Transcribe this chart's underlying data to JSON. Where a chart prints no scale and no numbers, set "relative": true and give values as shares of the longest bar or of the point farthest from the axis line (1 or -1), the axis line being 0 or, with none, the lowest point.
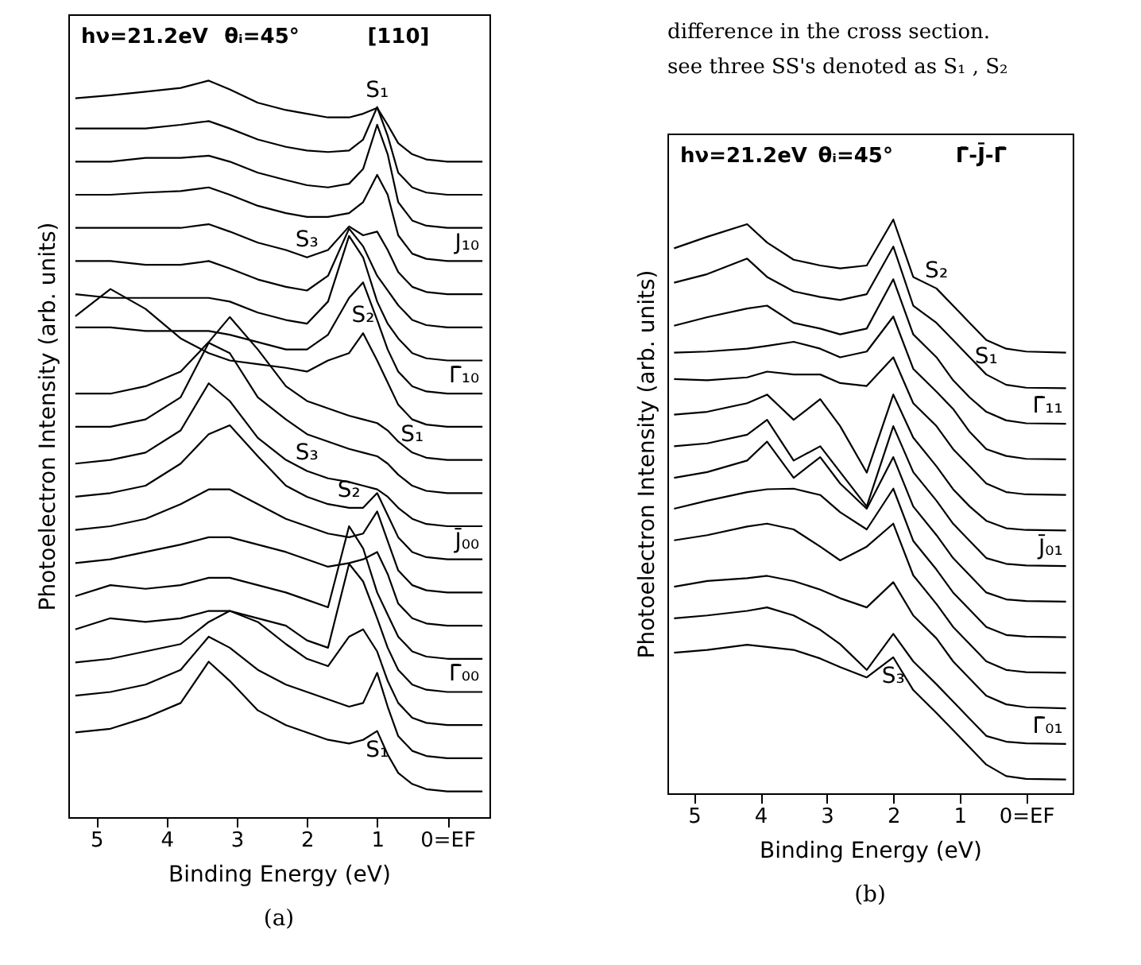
{
  "chart_data": [
    {
      "type": "line",
      "title": "(a)",
      "xlabel": "Binding Energy (eV)",
      "ylabel": "Photoelectron Intensity (arb. units)",
      "relative": true,
      "grid": false,
      "legend": false,
      "xlim": [
        5.4,
        -0.6
      ],
      "xticks": [
        5,
        4,
        3,
        2,
        1,
        {
          "value": 0,
          "label": "0=EF"
        }
      ],
      "x": [
        5.3,
        4.8,
        4.3,
        3.8,
        3.4,
        3.1,
        2.7,
        2.3,
        2.0,
        1.7,
        1.4,
        1.2,
        1.0,
        0.85,
        0.7,
        0.5,
        0.3,
        0.0,
        -0.5
      ],
      "series": [
        {
          "color": "#000000",
          "values": [
            0.976,
            0.98,
            0.985,
            0.99,
            1.0,
            0.988,
            0.97,
            0.96,
            0.955,
            0.95,
            0.95,
            0.955,
            0.963,
            0.94,
            0.915,
            0.9,
            0.893,
            0.89,
            0.89
          ]
        },
        {
          "color": "#000000",
          "values": [
            0.935,
            0.935,
            0.935,
            0.94,
            0.945,
            0.935,
            0.92,
            0.91,
            0.905,
            0.903,
            0.905,
            0.92,
            0.964,
            0.925,
            0.875,
            0.855,
            0.848,
            0.845,
            0.845
          ]
        },
        {
          "color": "#000000",
          "values": [
            0.89,
            0.89,
            0.895,
            0.895,
            0.898,
            0.89,
            0.875,
            0.865,
            0.858,
            0.855,
            0.86,
            0.88,
            0.94,
            0.9,
            0.835,
            0.81,
            0.803,
            0.8,
            0.8
          ]
        },
        {
          "color": "#000000",
          "values": [
            0.845,
            0.845,
            0.848,
            0.85,
            0.855,
            0.845,
            0.83,
            0.82,
            0.815,
            0.815,
            0.82,
            0.835,
            0.872,
            0.845,
            0.79,
            0.765,
            0.758,
            0.755,
            0.755
          ]
        },
        {
          "color": "#000000",
          "values": [
            0.8,
            0.8,
            0.8,
            0.8,
            0.805,
            0.795,
            0.78,
            0.77,
            0.76,
            0.77,
            0.802,
            0.79,
            0.795,
            0.77,
            0.74,
            0.72,
            0.713,
            0.71,
            0.71
          ]
        },
        {
          "color": "#000000",
          "values": [
            0.755,
            0.755,
            0.75,
            0.75,
            0.755,
            0.745,
            0.73,
            0.72,
            0.715,
            0.735,
            0.799,
            0.775,
            0.735,
            0.715,
            0.695,
            0.675,
            0.668,
            0.665,
            0.665
          ]
        },
        {
          "color": "#000000",
          "values": [
            0.71,
            0.705,
            0.705,
            0.705,
            0.705,
            0.7,
            0.685,
            0.675,
            0.67,
            0.7,
            0.789,
            0.76,
            0.7,
            0.67,
            0.65,
            0.63,
            0.623,
            0.62,
            0.62
          ]
        },
        {
          "color": "#000000",
          "values": [
            0.665,
            0.665,
            0.66,
            0.66,
            0.66,
            0.655,
            0.645,
            0.635,
            0.635,
            0.655,
            0.705,
            0.726,
            0.675,
            0.635,
            0.605,
            0.585,
            0.578,
            0.575,
            0.575
          ]
        },
        {
          "color": "#000000",
          "values": [
            0.68,
            0.717,
            0.69,
            0.65,
            0.63,
            0.62,
            0.615,
            0.61,
            0.605,
            0.62,
            0.63,
            0.657,
            0.62,
            0.59,
            0.56,
            0.54,
            0.533,
            0.53,
            0.53
          ]
        },
        {
          "color": "#000000",
          "values": [
            0.575,
            0.575,
            0.585,
            0.605,
            0.645,
            0.679,
            0.635,
            0.585,
            0.565,
            0.555,
            0.545,
            0.54,
            0.535,
            0.525,
            0.51,
            0.495,
            0.488,
            0.485,
            0.485
          ]
        },
        {
          "color": "#000000",
          "values": [
            0.53,
            0.53,
            0.54,
            0.57,
            0.644,
            0.63,
            0.57,
            0.54,
            0.52,
            0.51,
            0.5,
            0.495,
            0.49,
            0.48,
            0.465,
            0.45,
            0.443,
            0.44,
            0.44
          ]
        },
        {
          "color": "#000000",
          "values": [
            0.48,
            0.485,
            0.495,
            0.525,
            0.589,
            0.565,
            0.515,
            0.485,
            0.47,
            0.46,
            0.455,
            0.45,
            0.445,
            0.435,
            0.42,
            0.405,
            0.398,
            0.395,
            0.395
          ]
        },
        {
          "color": "#000000",
          "values": [
            0.435,
            0.44,
            0.45,
            0.48,
            0.52,
            0.532,
            0.49,
            0.45,
            0.435,
            0.425,
            0.42,
            0.42,
            0.44,
            0.41,
            0.38,
            0.36,
            0.353,
            0.35,
            0.35
          ]
        },
        {
          "color": "#000000",
          "values": [
            0.39,
            0.395,
            0.405,
            0.425,
            0.445,
            0.445,
            0.425,
            0.405,
            0.395,
            0.385,
            0.38,
            0.385,
            0.415,
            0.375,
            0.335,
            0.315,
            0.308,
            0.305,
            0.305
          ]
        },
        {
          "color": "#000000",
          "values": [
            0.345,
            0.35,
            0.36,
            0.37,
            0.38,
            0.38,
            0.37,
            0.36,
            0.35,
            0.34,
            0.345,
            0.35,
            0.36,
            0.33,
            0.29,
            0.27,
            0.263,
            0.26,
            0.26
          ]
        },
        {
          "color": "#000000",
          "values": [
            0.3,
            0.315,
            0.31,
            0.315,
            0.325,
            0.325,
            0.315,
            0.305,
            0.295,
            0.285,
            0.395,
            0.365,
            0.305,
            0.275,
            0.245,
            0.225,
            0.218,
            0.215,
            0.215
          ]
        },
        {
          "color": "#000000",
          "values": [
            0.255,
            0.27,
            0.265,
            0.27,
            0.28,
            0.28,
            0.27,
            0.26,
            0.24,
            0.23,
            0.344,
            0.32,
            0.27,
            0.23,
            0.2,
            0.18,
            0.173,
            0.17,
            0.17
          ]
        },
        {
          "color": "#000000",
          "values": [
            0.21,
            0.215,
            0.225,
            0.235,
            0.265,
            0.28,
            0.265,
            0.235,
            0.215,
            0.205,
            0.245,
            0.255,
            0.225,
            0.185,
            0.155,
            0.135,
            0.128,
            0.125,
            0.125
          ]
        },
        {
          "color": "#000000",
          "values": [
            0.165,
            0.17,
            0.18,
            0.2,
            0.245,
            0.23,
            0.2,
            0.18,
            0.17,
            0.16,
            0.15,
            0.155,
            0.196,
            0.15,
            0.11,
            0.09,
            0.083,
            0.08,
            0.08
          ]
        },
        {
          "color": "#000000",
          "values": [
            0.115,
            0.12,
            0.135,
            0.155,
            0.211,
            0.185,
            0.145,
            0.125,
            0.115,
            0.105,
            0.1,
            0.105,
            0.117,
            0.085,
            0.06,
            0.045,
            0.038,
            0.035,
            0.035
          ]
        }
      ],
      "annotations": [
        "hν=21.2eV",
        "θᵢ=45°",
        "[110]",
        {
          "text": "S₁",
          "x": 1.0,
          "y": 0.963
        },
        {
          "text": "S₃",
          "x": 2.0,
          "y": 0.76
        },
        {
          "text": "J₁₀",
          "x": -0.5,
          "y": 0.755
        },
        {
          "text": "S₂",
          "x": 1.2,
          "y": 0.657
        },
        {
          "text": "Γ̄₁₀",
          "x": -0.5,
          "y": 0.575
        },
        {
          "text": "S₁",
          "x": 0.5,
          "y": 0.495
        },
        {
          "text": "S₃",
          "x": 2.0,
          "y": 0.47
        },
        {
          "text": "S₂",
          "x": 1.4,
          "y": 0.42
        },
        {
          "text": "J̄₀₀",
          "x": -0.5,
          "y": 0.35
        },
        {
          "text": "Γ̄₀₀",
          "x": -0.5,
          "y": 0.17
        },
        {
          "text": "S₁",
          "x": 1.0,
          "y": 0.117
        }
      ]
    },
    {
      "type": "other",
      "annotations": [
        "difference in the cross section.",
        "see three SS's denoted as S₁ , S₂"
      ]
    },
    {
      "type": "line",
      "title": "(b)",
      "xlabel": "Binding Energy (eV)",
      "ylabel": "Photoelectron Intensity (arb. units)",
      "relative": true,
      "grid": false,
      "legend": false,
      "xlim": [
        5.4,
        -0.7
      ],
      "xticks": [
        5,
        4,
        3,
        2,
        1,
        {
          "value": 0,
          "label": "0=EF"
        }
      ],
      "x": [
        5.3,
        4.8,
        4.2,
        3.9,
        3.5,
        3.1,
        2.8,
        2.4,
        2.0,
        1.7,
        1.35,
        1.1,
        0.85,
        0.6,
        0.3,
        0.0,
        -0.6
      ],
      "series": [
        {
          "color": "#000000",
          "values": [
            0.95,
            0.97,
            0.992,
            0.96,
            0.93,
            0.92,
            0.915,
            0.92,
            1.0,
            0.9,
            0.88,
            0.85,
            0.82,
            0.79,
            0.775,
            0.77,
            0.768
          ]
        },
        {
          "color": "#000000",
          "values": [
            0.89,
            0.905,
            0.932,
            0.9,
            0.875,
            0.865,
            0.86,
            0.87,
            0.953,
            0.85,
            0.82,
            0.79,
            0.76,
            0.73,
            0.712,
            0.707,
            0.706
          ]
        },
        {
          "color": "#000000",
          "values": [
            0.815,
            0.83,
            0.845,
            0.85,
            0.82,
            0.81,
            0.8,
            0.81,
            0.896,
            0.8,
            0.76,
            0.72,
            0.69,
            0.665,
            0.65,
            0.645,
            0.644
          ]
        },
        {
          "color": "#000000",
          "values": [
            0.768,
            0.77,
            0.775,
            0.78,
            0.787,
            0.775,
            0.76,
            0.77,
            0.831,
            0.74,
            0.7,
            0.67,
            0.63,
            0.6,
            0.588,
            0.583,
            0.582
          ]
        },
        {
          "color": "#000000",
          "values": [
            0.722,
            0.72,
            0.725,
            0.735,
            0.73,
            0.73,
            0.715,
            0.71,
            0.76,
            0.68,
            0.64,
            0.6,
            0.57,
            0.54,
            0.525,
            0.521,
            0.52
          ]
        },
        {
          "color": "#000000",
          "values": [
            0.66,
            0.665,
            0.68,
            0.695,
            0.651,
            0.687,
            0.64,
            0.559,
            0.695,
            0.62,
            0.57,
            0.53,
            0.5,
            0.475,
            0.462,
            0.459,
            0.458
          ]
        },
        {
          "color": "#000000",
          "values": [
            0.605,
            0.61,
            0.625,
            0.651,
            0.58,
            0.605,
            0.56,
            0.5,
            0.64,
            0.56,
            0.51,
            0.47,
            0.44,
            0.41,
            0.4,
            0.397,
            0.396
          ]
        },
        {
          "color": "#000000",
          "values": [
            0.55,
            0.56,
            0.58,
            0.613,
            0.55,
            0.586,
            0.54,
            0.496,
            0.586,
            0.5,
            0.45,
            0.41,
            0.38,
            0.35,
            0.338,
            0.335,
            0.334
          ]
        },
        {
          "color": "#000000",
          "values": [
            0.496,
            0.51,
            0.525,
            0.53,
            0.531,
            0.52,
            0.49,
            0.46,
            0.531,
            0.44,
            0.39,
            0.35,
            0.32,
            0.29,
            0.276,
            0.273,
            0.272
          ]
        },
        {
          "color": "#000000",
          "values": [
            0.441,
            0.45,
            0.465,
            0.47,
            0.46,
            0.43,
            0.406,
            0.43,
            0.47,
            0.38,
            0.33,
            0.29,
            0.26,
            0.23,
            0.215,
            0.211,
            0.21
          ]
        },
        {
          "color": "#000000",
          "values": [
            0.36,
            0.37,
            0.375,
            0.379,
            0.37,
            0.355,
            0.34,
            0.324,
            0.368,
            0.31,
            0.27,
            0.23,
            0.2,
            0.17,
            0.155,
            0.15,
            0.148
          ]
        },
        {
          "color": "#000000",
          "values": [
            0.305,
            0.31,
            0.318,
            0.324,
            0.31,
            0.285,
            0.26,
            0.215,
            0.278,
            0.23,
            0.19,
            0.16,
            0.13,
            0.1,
            0.09,
            0.087,
            0.086
          ]
        },
        {
          "color": "#000000",
          "values": [
            0.245,
            0.25,
            0.259,
            0.255,
            0.25,
            0.235,
            0.22,
            0.202,
            0.237,
            0.18,
            0.14,
            0.11,
            0.08,
            0.05,
            0.03,
            0.025,
            0.024
          ]
        }
      ],
      "annotations": [
        "hν=21.2eV",
        "θᵢ=45°",
        "Γ̄-J̄-Γ̄",
        {
          "text": "S₂",
          "x": 1.35,
          "y": 0.88
        },
        {
          "text": "S₁",
          "x": 0.6,
          "y": 0.73
        },
        {
          "text": "Γ̄₁₁",
          "x": -0.6,
          "y": 0.644
        },
        {
          "text": "J̄₀₁",
          "x": -0.6,
          "y": 0.396
        },
        {
          "text": "S₃",
          "x": 2.0,
          "y": 0.237
        },
        {
          "text": "Γ̄₀₁",
          "x": -0.6,
          "y": 0.086
        }
      ]
    }
  ]
}
